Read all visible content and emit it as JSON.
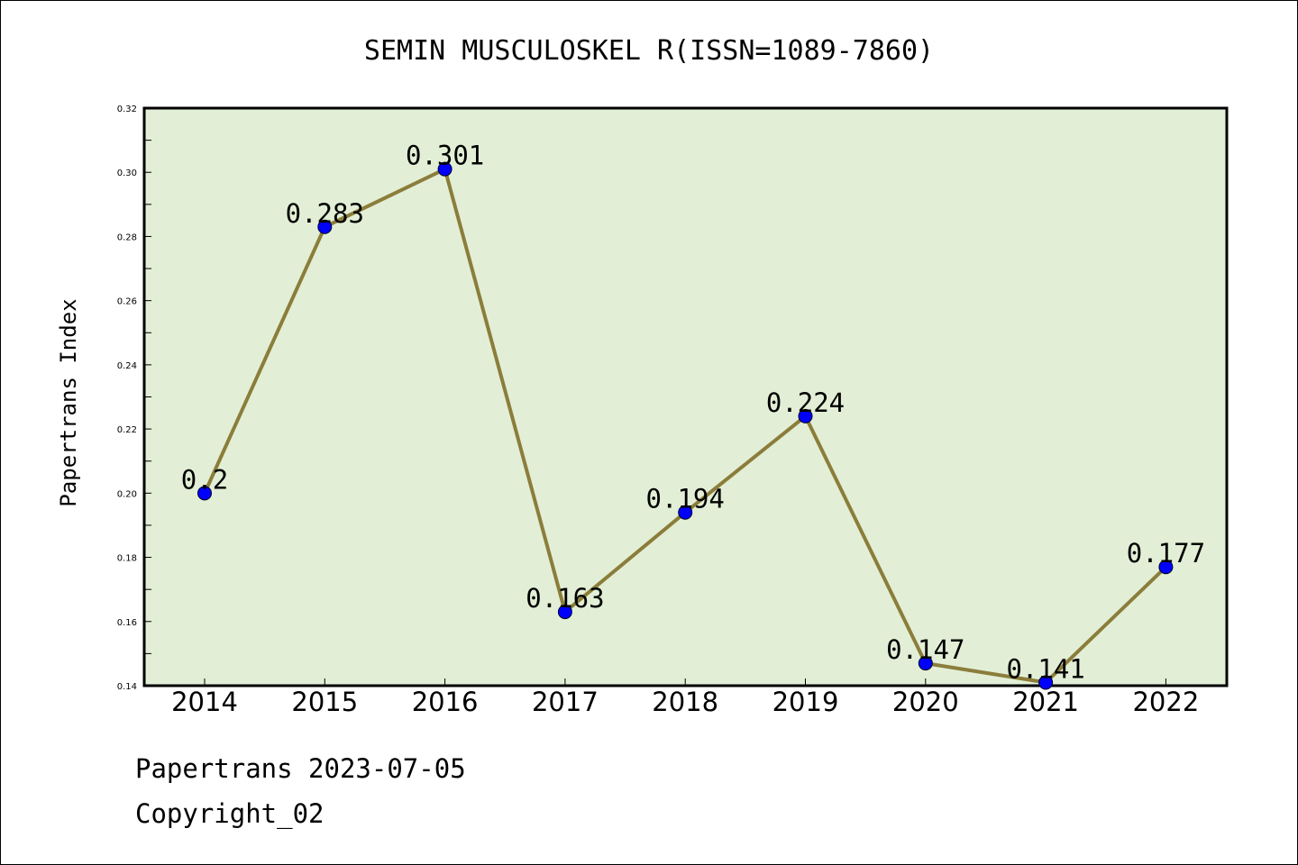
{
  "chart_data": {
    "type": "line",
    "title": "SEMIN MUSCULOSKEL R(ISSN=1089-7860)",
    "xlabel": "",
    "ylabel": "Papertrans Index",
    "categories": [
      "2014",
      "2015",
      "2016",
      "2017",
      "2018",
      "2019",
      "2020",
      "2021",
      "2022"
    ],
    "series": [
      {
        "values": [
          0.2,
          0.283,
          0.301,
          0.163,
          0.194,
          0.224,
          0.147,
          0.141,
          0.177
        ],
        "labels": [
          "0.2",
          "0.283",
          "0.301",
          "0.163",
          "0.194",
          "0.224",
          "0.147",
          "0.141",
          "0.177"
        ]
      }
    ],
    "ylim": [
      0.14,
      0.32
    ],
    "yticks": [
      "0.14",
      "0.16",
      "0.18",
      "0.20",
      "0.22",
      "0.24",
      "0.26",
      "0.28",
      "0.30",
      "0.32"
    ],
    "grid": false,
    "colors": {
      "plot_background": "#e2efd6",
      "line": "#8b7d3a",
      "marker": "#0000ff"
    }
  },
  "footer": {
    "date_line": "Papertrans 2023-07-05",
    "copyright_line": "Copyright_02"
  }
}
